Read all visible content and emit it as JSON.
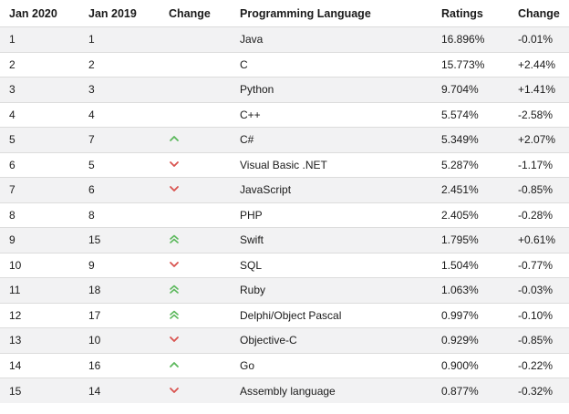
{
  "table": {
    "headers": [
      "Jan 2020",
      "Jan 2019",
      "Change",
      "Programming Language",
      "Ratings",
      "Change"
    ],
    "rows": [
      {
        "rank_2020": "1",
        "rank_2019": "1",
        "trend": "none",
        "language": "Java",
        "rating": "16.896%",
        "change": "-0.01%"
      },
      {
        "rank_2020": "2",
        "rank_2019": "2",
        "trend": "none",
        "language": "C",
        "rating": "15.773%",
        "change": "+2.44%"
      },
      {
        "rank_2020": "3",
        "rank_2019": "3",
        "trend": "none",
        "language": "Python",
        "rating": "9.704%",
        "change": "+1.41%"
      },
      {
        "rank_2020": "4",
        "rank_2019": "4",
        "trend": "none",
        "language": "C++",
        "rating": "5.574%",
        "change": "-2.58%"
      },
      {
        "rank_2020": "5",
        "rank_2019": "7",
        "trend": "up",
        "language": "C#",
        "rating": "5.349%",
        "change": "+2.07%"
      },
      {
        "rank_2020": "6",
        "rank_2019": "5",
        "trend": "down",
        "language": "Visual Basic .NET",
        "rating": "5.287%",
        "change": "-1.17%"
      },
      {
        "rank_2020": "7",
        "rank_2019": "6",
        "trend": "down",
        "language": "JavaScript",
        "rating": "2.451%",
        "change": "-0.85%"
      },
      {
        "rank_2020": "8",
        "rank_2019": "8",
        "trend": "none",
        "language": "PHP",
        "rating": "2.405%",
        "change": "-0.28%"
      },
      {
        "rank_2020": "9",
        "rank_2019": "15",
        "trend": "double-up",
        "language": "Swift",
        "rating": "1.795%",
        "change": "+0.61%"
      },
      {
        "rank_2020": "10",
        "rank_2019": "9",
        "trend": "down",
        "language": "SQL",
        "rating": "1.504%",
        "change": "-0.77%"
      },
      {
        "rank_2020": "11",
        "rank_2019": "18",
        "trend": "double-up",
        "language": "Ruby",
        "rating": "1.063%",
        "change": "-0.03%"
      },
      {
        "rank_2020": "12",
        "rank_2019": "17",
        "trend": "double-up",
        "language": "Delphi/Object Pascal",
        "rating": "0.997%",
        "change": "-0.10%"
      },
      {
        "rank_2020": "13",
        "rank_2019": "10",
        "trend": "down",
        "language": "Objective-C",
        "rating": "0.929%",
        "change": "-0.85%"
      },
      {
        "rank_2020": "14",
        "rank_2019": "16",
        "trend": "up",
        "language": "Go",
        "rating": "0.900%",
        "change": "-0.22%"
      },
      {
        "rank_2020": "15",
        "rank_2019": "14",
        "trend": "down",
        "language": "Assembly language",
        "rating": "0.877%",
        "change": "-0.32%"
      }
    ]
  },
  "icons": {
    "up": "chevron-up-icon",
    "double-up": "double-chevron-up-icon",
    "down": "chevron-down-icon"
  },
  "colors": {
    "up": "#5cb85c",
    "down": "#d9534f",
    "row_alt": "#f2f2f3",
    "divider": "#dcdcdc"
  }
}
